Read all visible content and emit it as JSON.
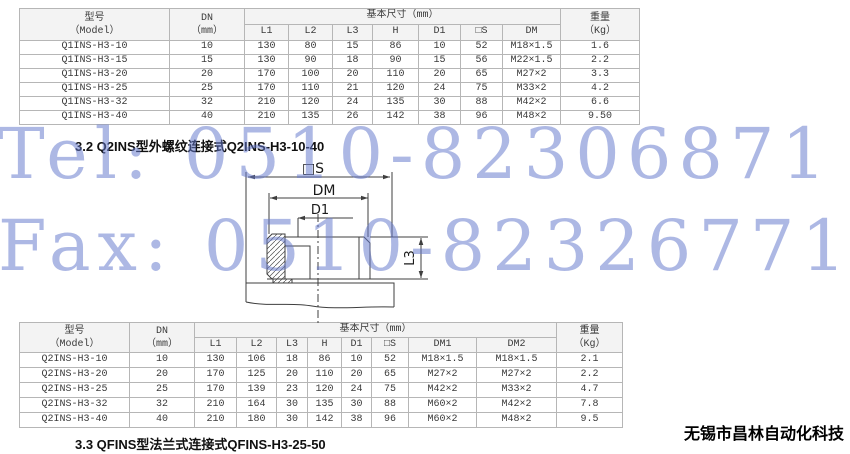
{
  "watermark": {
    "line1": "Tel: 0510-82306871",
    "line2": "Fax: 0510-82326771",
    "color": "#6478cc"
  },
  "sections": {
    "s32": "3.2 Q2INS型外螺纹连接式Q2INS-H3-10-40",
    "s33": "3.3 QFINS型法兰式连接式QFINS-H3-25-50"
  },
  "footer": {
    "company": "无锡市昌林自动化科技"
  },
  "diagram": {
    "label_s": "□S",
    "label_dm": "DM",
    "label_d1": "D1",
    "label_l3": "L3"
  },
  "table1": {
    "header": {
      "model_line1": "型号",
      "model_line2": "（Model）",
      "dn_line1": "DN",
      "dn_line2": "（mm）",
      "basic": "基本尺寸（mm）",
      "weight_line1": "重量",
      "weight_line2": "（Kg）",
      "dims": [
        "L1",
        "L2",
        "L3",
        "H",
        "D1",
        "□S",
        "DM"
      ]
    },
    "rows": [
      [
        "Q1INS-H3-10",
        "10",
        "130",
        "80",
        "15",
        "86",
        "10",
        "52",
        "M18×1.5",
        "1.6"
      ],
      [
        "Q1INS-H3-15",
        "15",
        "130",
        "90",
        "18",
        "90",
        "15",
        "56",
        "M22×1.5",
        "2.2"
      ],
      [
        "Q1INS-H3-20",
        "20",
        "170",
        "100",
        "20",
        "110",
        "20",
        "65",
        "M27×2",
        "3.3"
      ],
      [
        "Q1INS-H3-25",
        "25",
        "170",
        "110",
        "21",
        "120",
        "24",
        "75",
        "M33×2",
        "4.2"
      ],
      [
        "Q1INS-H3-32",
        "32",
        "210",
        "120",
        "24",
        "135",
        "30",
        "88",
        "M42×2",
        "6.6"
      ],
      [
        "Q1INS-H3-40",
        "40",
        "210",
        "135",
        "26",
        "142",
        "38",
        "96",
        "M48×2",
        "9.50"
      ]
    ]
  },
  "table2": {
    "header": {
      "model_line1": "型号",
      "model_line2": "（Model）",
      "dn_line1": "DN",
      "dn_line2": "（mm）",
      "basic": "基本尺寸（mm）",
      "weight_line1": "重量",
      "weight_line2": "（Kg）",
      "dims": [
        "L1",
        "L2",
        "L3",
        "H",
        "D1",
        "□S",
        "DM1",
        "DM2"
      ]
    },
    "rows": [
      [
        "Q2INS-H3-10",
        "10",
        "130",
        "106",
        "18",
        "86",
        "10",
        "52",
        "M18×1.5",
        "M18×1.5",
        "2.1"
      ],
      [
        "Q2INS-H3-20",
        "20",
        "170",
        "125",
        "20",
        "110",
        "20",
        "65",
        "M27×2",
        "M27×2",
        "2.2"
      ],
      [
        "Q2INS-H3-25",
        "25",
        "170",
        "139",
        "23",
        "120",
        "24",
        "75",
        "M42×2",
        "M33×2",
        "4.7"
      ],
      [
        "Q2INS-H3-32",
        "32",
        "210",
        "164",
        "30",
        "135",
        "30",
        "88",
        "M60×2",
        "M42×2",
        "7.8"
      ],
      [
        "Q2INS-H3-40",
        "40",
        "210",
        "180",
        "30",
        "142",
        "38",
        "96",
        "M60×2",
        "M48×2",
        "9.5"
      ]
    ]
  }
}
